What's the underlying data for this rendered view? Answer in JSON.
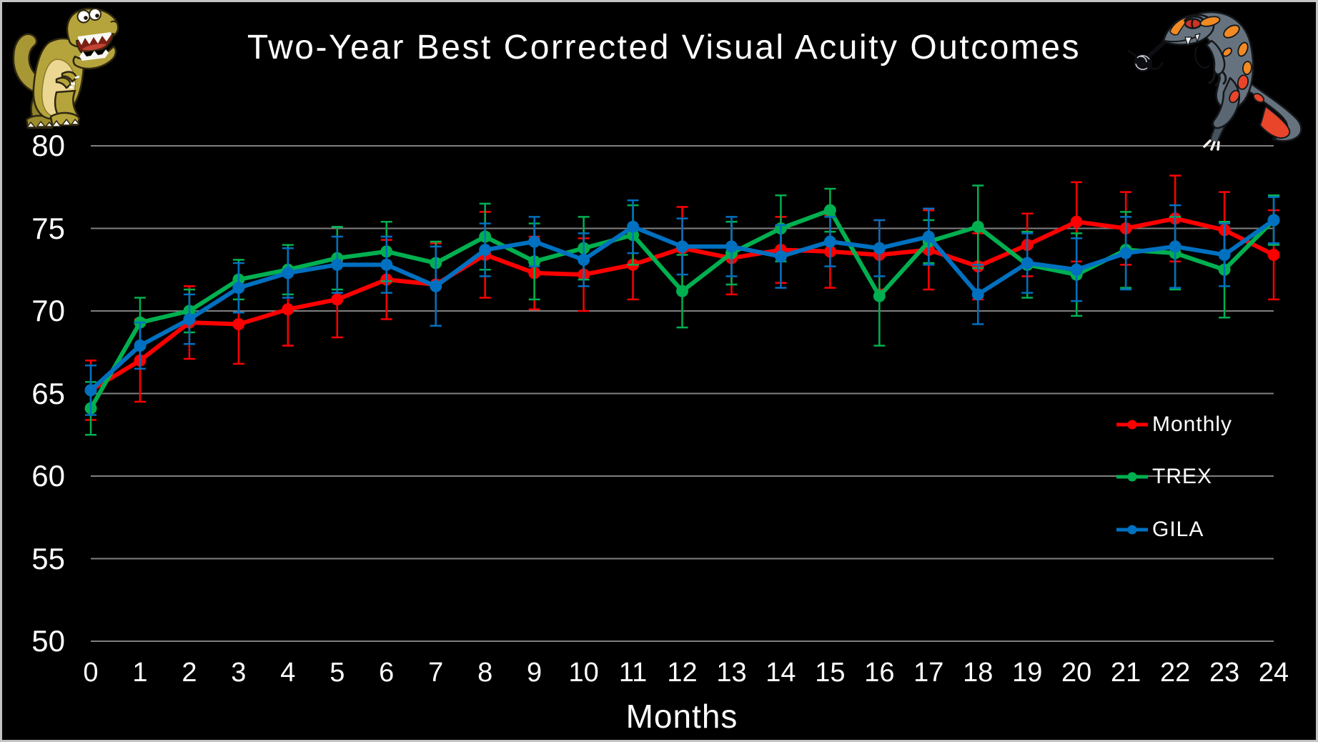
{
  "title": {
    "text": "Two-Year Best Corrected Visual Acuity Outcomes"
  },
  "images": {
    "left": "cartoon-trex",
    "right": "cartoon-gila-monster"
  },
  "axes": {
    "x": {
      "label": "Months",
      "ticks": [
        0,
        1,
        2,
        3,
        4,
        5,
        6,
        7,
        8,
        9,
        10,
        11,
        12,
        13,
        14,
        15,
        16,
        17,
        18,
        19,
        20,
        21,
        22,
        23,
        24
      ]
    },
    "y": {
      "ticks": [
        80,
        75,
        70,
        65,
        60,
        55,
        50
      ],
      "min": 50,
      "max": 80
    }
  },
  "legend": {
    "items": [
      {
        "label": "Monthly",
        "color": "#ff0000"
      },
      {
        "label": "TREX",
        "color": "#00b050"
      },
      {
        "label": "GILA",
        "color": "#0070c0"
      }
    ]
  },
  "colors": {
    "background": "#000000",
    "gridline": "#7f7f7f",
    "text": "#ffffff",
    "frame_border": "#c4c4c4"
  },
  "chart_data": {
    "type": "line",
    "title": "Two-Year Best Corrected Visual Acuity Outcomes",
    "xlabel": "Months",
    "ylabel": "",
    "x": [
      0,
      1,
      2,
      3,
      4,
      5,
      6,
      7,
      8,
      9,
      10,
      11,
      12,
      13,
      14,
      15,
      16,
      17,
      18,
      19,
      20,
      21,
      22,
      23,
      24
    ],
    "ylim": [
      50,
      80
    ],
    "grid": true,
    "legend_position": "middle-right",
    "error_bars": true,
    "series": [
      {
        "name": "Monthly",
        "color": "#ff0000",
        "values": [
          65.2,
          67.0,
          69.3,
          69.2,
          70.1,
          70.7,
          71.9,
          71.6,
          73.4,
          72.3,
          72.2,
          72.8,
          73.8,
          73.2,
          73.7,
          73.6,
          73.4,
          73.7,
          72.7,
          74.0,
          75.4,
          75.0,
          75.6,
          74.9,
          73.4
        ],
        "error": [
          1.8,
          2.5,
          2.2,
          2.4,
          2.2,
          2.3,
          2.4,
          2.5,
          2.6,
          2.2,
          2.2,
          2.1,
          2.5,
          2.2,
          2.0,
          2.2,
          2.1,
          2.4,
          2.0,
          1.9,
          2.4,
          2.2,
          2.6,
          2.3,
          2.7
        ]
      },
      {
        "name": "TREX",
        "color": "#00b050",
        "values": [
          64.1,
          69.3,
          70.0,
          71.9,
          72.5,
          73.2,
          73.6,
          72.9,
          74.5,
          73.0,
          73.8,
          74.6,
          71.2,
          73.5,
          75.0,
          76.1,
          70.9,
          74.2,
          75.1,
          72.8,
          72.2,
          73.7,
          73.5,
          72.5,
          75.5
        ],
        "error": [
          1.6,
          1.5,
          1.3,
          1.2,
          1.5,
          1.9,
          1.8,
          1.3,
          2.0,
          2.3,
          1.9,
          1.8,
          2.2,
          1.9,
          2.0,
          1.3,
          3.0,
          1.3,
          2.5,
          2.0,
          2.5,
          2.3,
          2.2,
          2.9,
          1.5
        ]
      },
      {
        "name": "GILA",
        "color": "#0070c0",
        "values": [
          65.2,
          67.9,
          69.5,
          71.4,
          72.3,
          72.8,
          72.8,
          71.5,
          73.7,
          74.2,
          73.1,
          75.1,
          73.9,
          73.9,
          73.3,
          74.2,
          73.8,
          74.5,
          71.0,
          72.9,
          72.5,
          73.5,
          73.9,
          73.4,
          75.5
        ],
        "error": [
          1.5,
          1.4,
          1.5,
          1.5,
          1.5,
          1.7,
          1.7,
          2.4,
          1.6,
          1.5,
          1.6,
          1.6,
          1.7,
          1.8,
          1.9,
          1.5,
          1.7,
          1.7,
          1.8,
          1.8,
          1.9,
          2.2,
          2.5,
          1.9,
          1.4
        ]
      }
    ]
  }
}
